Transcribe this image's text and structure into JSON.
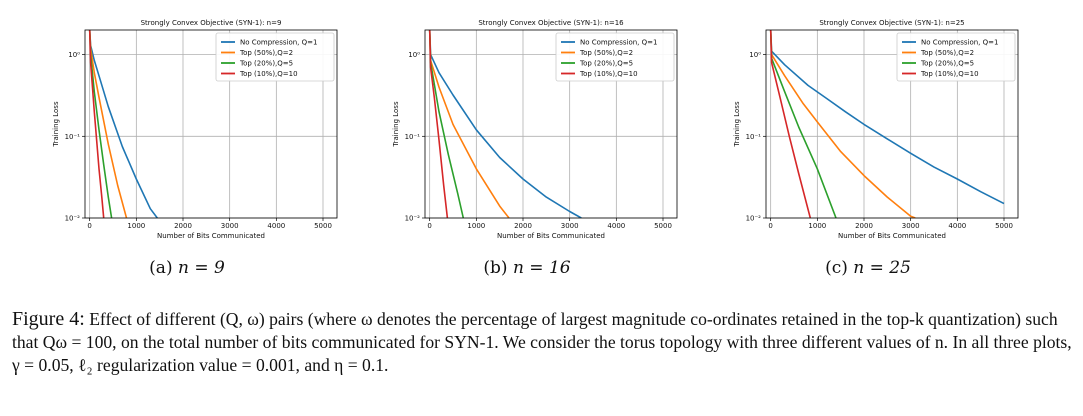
{
  "chart_data": [
    {
      "type": "line",
      "title": "Strongly Convex Objective (SYN-1): n=9",
      "xlabel": "Number of Bits Communicated",
      "ylabel": "Training Loss",
      "xlim": [
        -100,
        5300
      ],
      "ylim": [
        0.01,
        2.0
      ],
      "yscale": "log",
      "xticks": [
        0,
        1000,
        2000,
        3000,
        4000,
        5000
      ],
      "yticks": [
        {
          "value": 1,
          "label": "10⁰"
        },
        {
          "value": 0.1,
          "label": "10⁻¹"
        },
        {
          "value": 0.01,
          "label": "10⁻²"
        }
      ],
      "grid": true,
      "legend_position": "top-right",
      "series": [
        {
          "name": "No Compression, Q=1",
          "color": "#1f77b4",
          "x": [
            0,
            20,
            100,
            200,
            400,
            700,
            1000,
            1300,
            1450
          ],
          "y": [
            2.0,
            1.3,
            0.85,
            0.55,
            0.23,
            0.075,
            0.03,
            0.013,
            0.01
          ]
        },
        {
          "name": "Top (50%),Q=2",
          "color": "#ff7f0e",
          "x": [
            0,
            20,
            100,
            200,
            400,
            600,
            790
          ],
          "y": [
            2.0,
            1.2,
            0.6,
            0.3,
            0.08,
            0.025,
            0.01
          ]
        },
        {
          "name": "Top (20%),Q=5",
          "color": "#2ca02c",
          "x": [
            0,
            20,
            100,
            200,
            300,
            400,
            470
          ],
          "y": [
            2.0,
            1.0,
            0.35,
            0.12,
            0.045,
            0.018,
            0.01
          ]
        },
        {
          "name": "Top (10%),Q=10",
          "color": "#d62728",
          "x": [
            0,
            20,
            100,
            200,
            260,
            300
          ],
          "y": [
            2.0,
            0.8,
            0.2,
            0.04,
            0.018,
            0.01
          ]
        }
      ]
    },
    {
      "type": "line",
      "title": "Strongly Convex Objective (SYN-1): n=16",
      "xlabel": "Number of Bits Communicated",
      "ylabel": "Training Loss",
      "xlim": [
        -100,
        5300
      ],
      "ylim": [
        0.01,
        2.0
      ],
      "yscale": "log",
      "xticks": [
        0,
        1000,
        2000,
        3000,
        4000,
        5000
      ],
      "yticks": [
        {
          "value": 1,
          "label": "10⁰"
        },
        {
          "value": 0.1,
          "label": "10⁻¹"
        },
        {
          "value": 0.01,
          "label": "10⁻²"
        }
      ],
      "grid": true,
      "legend_position": "top-right",
      "series": [
        {
          "name": "No Compression, Q=1",
          "color": "#1f77b4",
          "x": [
            0,
            20,
            200,
            500,
            1000,
            1500,
            2000,
            2500,
            3000,
            3250
          ],
          "y": [
            2.0,
            1.0,
            0.6,
            0.32,
            0.12,
            0.055,
            0.03,
            0.018,
            0.012,
            0.01
          ]
        },
        {
          "name": "Top (50%),Q=2",
          "color": "#ff7f0e",
          "x": [
            0,
            20,
            200,
            500,
            1000,
            1500,
            1700
          ],
          "y": [
            2.0,
            0.85,
            0.4,
            0.14,
            0.04,
            0.014,
            0.01
          ]
        },
        {
          "name": "Top (20%),Q=5",
          "color": "#2ca02c",
          "x": [
            0,
            20,
            200,
            400,
            600,
            720
          ],
          "y": [
            2.0,
            0.8,
            0.2,
            0.06,
            0.02,
            0.01
          ]
        },
        {
          "name": "Top (10%),Q=10",
          "color": "#d62728",
          "x": [
            0,
            20,
            100,
            200,
            300,
            380
          ],
          "y": [
            2.0,
            0.7,
            0.3,
            0.09,
            0.025,
            0.01
          ]
        }
      ]
    },
    {
      "type": "line",
      "title": "Strongly Convex Objective (SYN-1): n=25",
      "xlabel": "Number of Bits Communicated",
      "ylabel": "Training Loss",
      "xlim": [
        -100,
        5300
      ],
      "ylim": [
        0.01,
        2.0
      ],
      "yscale": "log",
      "xticks": [
        0,
        1000,
        2000,
        3000,
        4000,
        5000
      ],
      "yticks": [
        {
          "value": 1,
          "label": "10⁰"
        },
        {
          "value": 0.1,
          "label": "10⁻¹"
        },
        {
          "value": 0.01,
          "label": "10⁻²"
        }
      ],
      "grid": true,
      "legend_position": "top-right",
      "series": [
        {
          "name": "No Compression, Q=1",
          "color": "#1f77b4",
          "x": [
            0,
            20,
            300,
            800,
            1200,
            1600,
            2000,
            2500,
            3000,
            3500,
            4000,
            4500,
            5000
          ],
          "y": [
            2.0,
            1.1,
            0.75,
            0.42,
            0.29,
            0.2,
            0.14,
            0.093,
            0.062,
            0.042,
            0.03,
            0.021,
            0.015
          ]
        },
        {
          "name": "Top (50%),Q=2",
          "color": "#ff7f0e",
          "x": [
            0,
            20,
            300,
            700,
            1000,
            1500,
            2000,
            2500,
            3000,
            3100
          ],
          "y": [
            2.0,
            1.0,
            0.55,
            0.25,
            0.15,
            0.065,
            0.033,
            0.018,
            0.0105,
            0.01
          ]
        },
        {
          "name": "Top (20%),Q=5",
          "color": "#2ca02c",
          "x": [
            0,
            20,
            300,
            600,
            1000,
            1400
          ],
          "y": [
            2.0,
            0.9,
            0.35,
            0.13,
            0.04,
            0.01
          ]
        },
        {
          "name": "Top (10%),Q=10",
          "color": "#d62728",
          "x": [
            0,
            20,
            200,
            400,
            600,
            850
          ],
          "y": [
            2.0,
            0.8,
            0.3,
            0.1,
            0.035,
            0.01
          ]
        }
      ]
    }
  ],
  "subcaptions": [
    {
      "label": "(a)",
      "math": "n = 9"
    },
    {
      "label": "(b)",
      "math": "n = 16"
    },
    {
      "label": "(c)",
      "math": "n = 25"
    }
  ],
  "caption": {
    "figure_label": "Figure 4:",
    "text": "Effect of different (Q, ω) pairs (where ω denotes the percentage of largest magnitude co-ordinates retained in the top-k quantization) such that Qω = 100, on the total number of bits communicated for SYN-1. We consider the torus topology with three different values of n. In all three plots, γ = 0.05, ℓ₂ regularization value = 0.001, and η = 0.1."
  }
}
